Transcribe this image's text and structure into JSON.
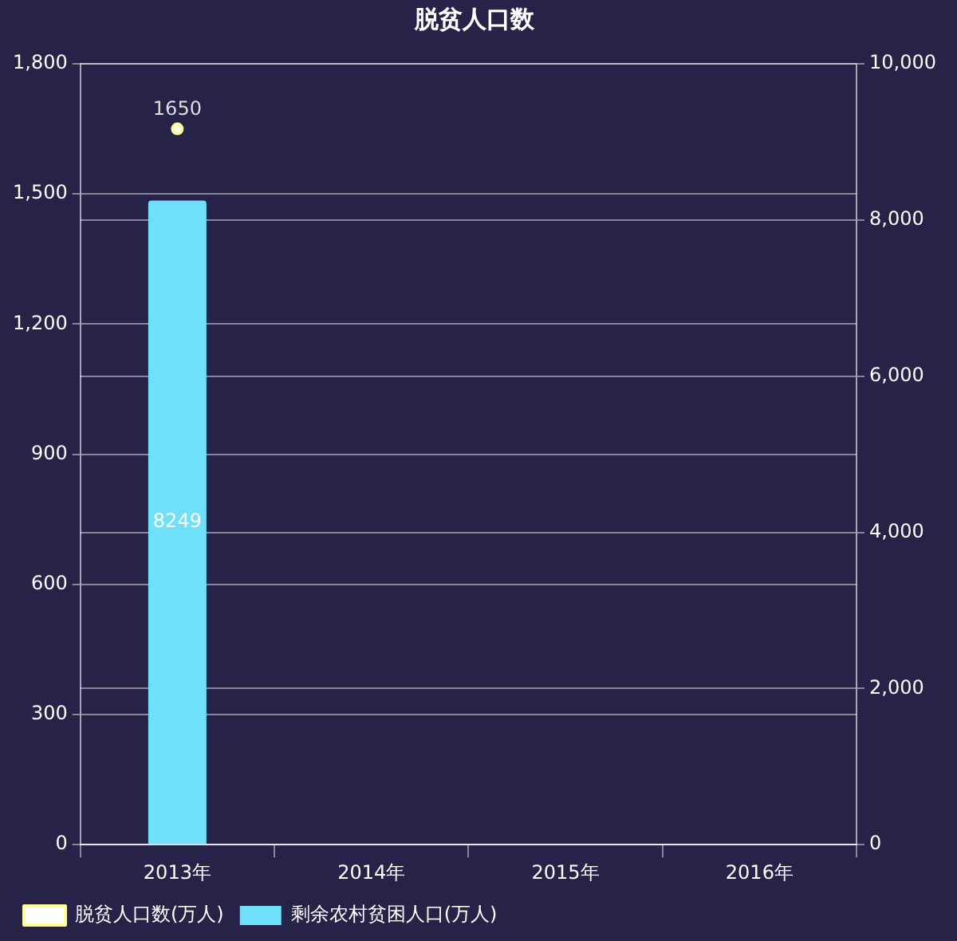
{
  "chart_data": {
    "type": "bar",
    "title": "脱贫人口数",
    "categories": [
      "2013年",
      "2014年",
      "2015年",
      "2016年"
    ],
    "series": [
      {
        "name": "脱贫人口数(万人)",
        "type": "line",
        "color": "#ffff99",
        "values": [
          1650,
          null,
          null,
          null
        ]
      },
      {
        "name": "剩余农村贫困人口(万人)",
        "axis": "y2",
        "color": "#6fe0fa",
        "values": [
          8249,
          null,
          null,
          null
        ]
      }
    ],
    "ylim": [
      0,
      1800
    ],
    "yticks": [
      0,
      300,
      600,
      900,
      {
        "value": 1200,
        "label": "1,200"
      },
      {
        "value": 1500,
        "label": "1,500"
      },
      {
        "value": 1800,
        "label": "1,800"
      }
    ],
    "y2lim": [
      0,
      10000
    ],
    "y2ticks": [
      0,
      {
        "value": 2000,
        "label": "2,000"
      },
      {
        "value": 4000,
        "label": "4,000"
      },
      {
        "value": 6000,
        "label": "6,000"
      },
      {
        "value": 8000,
        "label": "8,000"
      },
      {
        "value": 10000,
        "label": "10,000"
      }
    ],
    "grid": true,
    "legend": "bottom left",
    "marker": "circle",
    "data_labels": true
  }
}
